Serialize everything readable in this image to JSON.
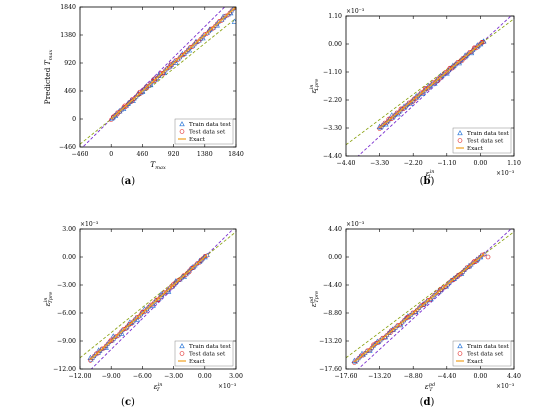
{
  "panels": [
    {
      "caption": "a",
      "xlabel_html": "T<tspan font-size='5px' dy='1.5'>max</tspan>",
      "ylabel_html": "Predicted <tspan font-style='italic'>T</tspan><tspan font-size='5px' dy='1.5'>max</tspan>",
      "xlabel": "T_max",
      "ylabel": "Predicted T_max",
      "xlim": [
        -460,
        1840
      ],
      "ylim": [
        -460,
        1840
      ],
      "xticks": [
        "−460",
        "0",
        "460",
        "920",
        "1380",
        "1840"
      ],
      "yticks": [
        "−460",
        "0",
        "460",
        "920",
        "1380",
        "1840"
      ],
      "x_exponent": "",
      "y_exponent": "",
      "legend_pos": "bottom-right"
    },
    {
      "caption": "b",
      "xlabel": "ε_L^in",
      "ylabel": "ε_Lpre^in",
      "xlim": [
        -4.4,
        1.1
      ],
      "ylim": [
        -4.4,
        1.1
      ],
      "xticks": [
        "−4.40",
        "−3.30",
        "−2.20",
        "−1.10",
        "0.00",
        "1.10"
      ],
      "yticks": [
        "−4.40",
        "−3.30",
        "−2.20",
        "−1.10",
        "0.00",
        "1.10"
      ],
      "x_exponent": "×10⁻³",
      "y_exponent": "×10⁻³",
      "legend_pos": "bottom-right"
    },
    {
      "caption": "c",
      "xlabel": "ε_T^in",
      "ylabel": "ε_Tpre^in",
      "xlim": [
        -12.0,
        3.0
      ],
      "ylim": [
        -12.0,
        3.0
      ],
      "xticks": [
        "−12.00",
        "−9.00",
        "−6.00",
        "−3.00",
        "0.00",
        "3.00"
      ],
      "yticks": [
        "−12.00",
        "−9.00",
        "−6.00",
        "−3.00",
        "0.00",
        "3.00"
      ],
      "x_exponent": "×10⁻³",
      "y_exponent": "×10⁻³",
      "legend_pos": "bottom-right"
    },
    {
      "caption": "d",
      "xlabel": "ε_T^pd",
      "ylabel": "ε_Tpre^pd",
      "xlim": [
        -17.6,
        4.4
      ],
      "ylim": [
        -17.6,
        4.4
      ],
      "xticks": [
        "−17.60",
        "−13.20",
        "−8.80",
        "−4.40",
        "0.00",
        "4.40"
      ],
      "yticks": [
        "−17.60",
        "−13.20",
        "−8.80",
        "−4.40",
        "0.00",
        "4.40"
      ],
      "x_exponent": "×10⁻³",
      "y_exponent": "×10⁻³",
      "legend_pos": "bottom-right"
    }
  ],
  "legend": {
    "train": "Train data test",
    "test": "Test data set",
    "exact": "Exact"
  },
  "colors": {
    "train": "#1f6fd6",
    "test": "#e02020",
    "exact": "#f0a020",
    "upper_bound": "#7a2fcf",
    "lower_bound": "#8fa61c"
  },
  "chart_data": [
    {
      "type": "scatter",
      "xlim": [
        -460,
        1840
      ],
      "ylim": [
        -460,
        1840
      ],
      "series": [
        {
          "name": "Train data test",
          "marker": "triangle",
          "x": [
            20,
            60,
            120,
            180,
            250,
            320,
            400,
            460,
            520,
            580,
            640,
            700,
            780,
            860,
            950,
            1050,
            1150,
            1250,
            1350,
            1450,
            1560,
            1650,
            1760,
            1820
          ],
          "y": [
            25,
            55,
            130,
            170,
            260,
            300,
            420,
            450,
            540,
            560,
            660,
            720,
            760,
            880,
            930,
            1070,
            1130,
            1270,
            1330,
            1470,
            1540,
            1680,
            1740,
            1600
          ]
        },
        {
          "name": "Test data set",
          "marker": "circle",
          "x": [
            30,
            90,
            200,
            300,
            420,
            520,
            640,
            760,
            880
          ],
          "y": [
            35,
            80,
            215,
            290,
            440,
            510,
            660,
            740,
            900
          ]
        },
        {
          "name": "Exact",
          "x": [
            0,
            1840
          ],
          "y": [
            0,
            1840
          ]
        }
      ],
      "bounds": {
        "upper_slope": 1.1,
        "lower_slope": 0.9
      }
    },
    {
      "type": "scatter",
      "xlim": [
        -4.4,
        1.1
      ],
      "ylim": [
        -4.4,
        1.1
      ],
      "series": [
        {
          "name": "Train data test",
          "marker": "triangle",
          "x": [
            -3.3,
            -3.1,
            -2.9,
            -2.7,
            -2.5,
            -2.3,
            -2.1,
            -1.9,
            -1.7,
            -1.5,
            -1.3,
            -1.1,
            -0.9,
            -0.7,
            -0.5,
            -0.3,
            -0.1,
            0.0,
            0.1
          ],
          "y": [
            -3.25,
            -3.15,
            -2.8,
            -2.75,
            -2.45,
            -2.35,
            -2.05,
            -1.95,
            -1.65,
            -1.55,
            -1.25,
            -1.15,
            -0.85,
            -0.75,
            -0.45,
            -0.35,
            -0.05,
            0.0,
            0.1
          ]
        },
        {
          "name": "Test data set",
          "marker": "circle",
          "x": [
            -3.0,
            -2.6,
            -2.2,
            -1.8,
            -1.4,
            -1.0,
            -0.6,
            -0.2,
            0.05
          ],
          "y": [
            -2.95,
            -2.55,
            -2.25,
            -1.75,
            -1.45,
            -0.95,
            -0.65,
            -0.15,
            0.05
          ]
        },
        {
          "name": "Exact",
          "x": [
            -3.3,
            0.1
          ],
          "y": [
            -3.3,
            0.1
          ]
        }
      ],
      "bounds": {
        "upper_slope": 1.1,
        "lower_slope": 0.9
      }
    },
    {
      "type": "scatter",
      "xlim": [
        -12.0,
        3.0
      ],
      "ylim": [
        -12.0,
        3.0
      ],
      "series": [
        {
          "name": "Train data test",
          "marker": "triangle",
          "x": [
            -11.0,
            -10.2,
            -9.5,
            -8.8,
            -8.0,
            -7.2,
            -6.5,
            -5.8,
            -5.0,
            -4.2,
            -3.5,
            -2.8,
            -2.0,
            -1.2,
            -0.5,
            0.0
          ],
          "y": [
            -10.8,
            -10.0,
            -9.7,
            -8.5,
            -8.2,
            -7.0,
            -6.7,
            -5.6,
            -5.2,
            -4.0,
            -3.7,
            -2.6,
            -2.1,
            -1.1,
            -0.4,
            0.0
          ]
        },
        {
          "name": "Test data set",
          "marker": "circle",
          "x": [
            -9.0,
            -7.5,
            -6.0,
            -4.5,
            -3.0,
            -1.5,
            -0.3
          ],
          "y": [
            -8.9,
            -7.6,
            -5.9,
            -4.6,
            -2.9,
            -1.6,
            -0.3
          ]
        },
        {
          "name": "Exact",
          "x": [
            -11.0,
            0.2
          ],
          "y": [
            -11.0,
            0.2
          ]
        }
      ],
      "bounds": {
        "upper_slope": 1.1,
        "lower_slope": 0.9
      }
    },
    {
      "type": "scatter",
      "xlim": [
        -17.6,
        4.4
      ],
      "ylim": [
        -17.6,
        4.4
      ],
      "series": [
        {
          "name": "Train data test",
          "marker": "triangle",
          "x": [
            -16.5,
            -15.5,
            -14.5,
            -13.5,
            -12.5,
            -11.5,
            -10.5,
            -9.5,
            -8.5,
            -7.5,
            -6.5,
            -5.5,
            -4.5,
            -3.5,
            -2.5,
            -1.5,
            -0.5,
            0.0
          ],
          "y": [
            -16.3,
            -15.2,
            -14.7,
            -13.3,
            -12.6,
            -11.4,
            -10.7,
            -9.3,
            -8.6,
            -7.4,
            -6.6,
            -5.4,
            -4.6,
            -3.4,
            -2.6,
            -1.4,
            -0.4,
            0.0
          ]
        },
        {
          "name": "Test data set",
          "marker": "circle",
          "x": [
            -14.0,
            -11.8,
            -9.6,
            -7.4,
            -5.2,
            -3.0,
            -0.8,
            1.0
          ],
          "y": [
            -13.8,
            -11.9,
            -9.5,
            -7.5,
            -5.1,
            -3.1,
            -0.7,
            0.0
          ]
        },
        {
          "name": "Exact",
          "x": [
            -16.5,
            0.5
          ],
          "y": [
            -16.5,
            0.5
          ]
        }
      ],
      "bounds": {
        "upper_slope": 1.1,
        "lower_slope": 0.9
      }
    }
  ]
}
